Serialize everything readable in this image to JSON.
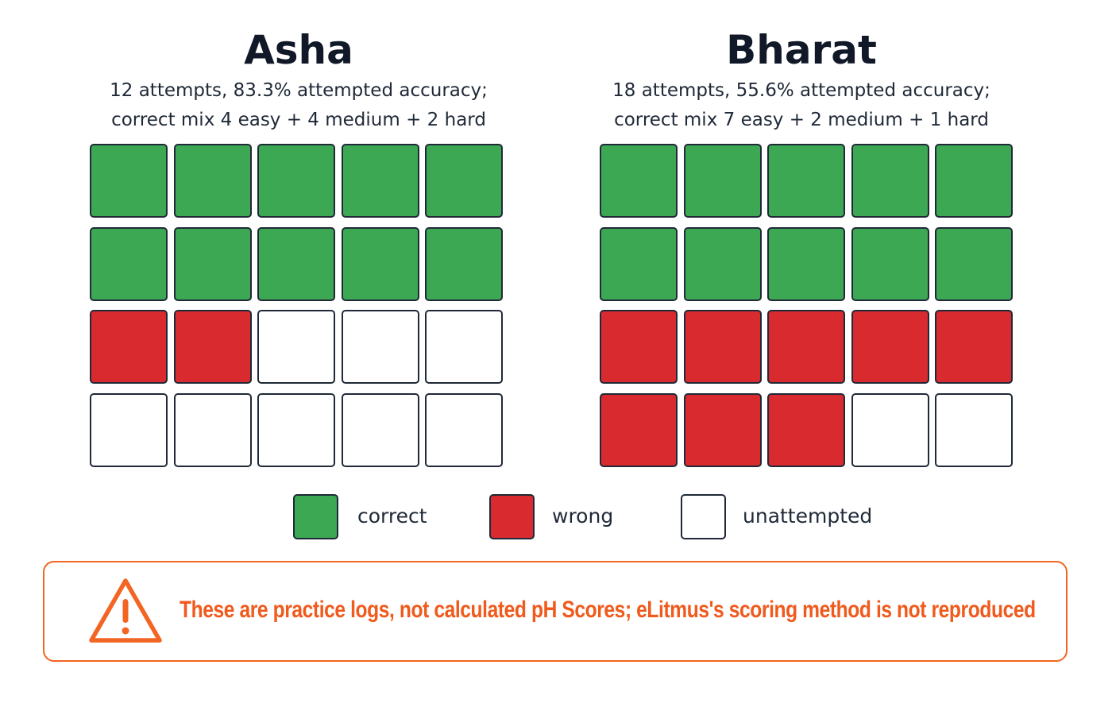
{
  "chart_data": [
    {
      "type": "waffle",
      "title": "Asha",
      "subtitle_line1": "12 attempts, 83.3% attempted accuracy;",
      "subtitle_line2": "correct mix 4 easy + 4 medium + 2 hard",
      "rows": 4,
      "cols": 5,
      "counts": {
        "correct": 10,
        "wrong": 2,
        "unattempted": 8
      }
    },
    {
      "type": "waffle",
      "title": "Bharat",
      "subtitle_line1": "18 attempts, 55.6% attempted accuracy;",
      "subtitle_line2": "correct mix 7 easy + 2 medium + 1 hard",
      "rows": 4,
      "cols": 5,
      "counts": {
        "correct": 10,
        "wrong": 8,
        "unattempted": 2
      }
    }
  ],
  "legend": [
    {
      "key": "correct",
      "label": "correct",
      "color": "#3da853"
    },
    {
      "key": "wrong",
      "label": "wrong",
      "color": "#d92b2f"
    },
    {
      "key": "unattempted",
      "label": "unattempted",
      "color": "#ffffff"
    }
  ],
  "warning": {
    "icon": "warning-triangle-icon",
    "text": "These are practice logs, not calculated pH Scores; eLitmus's scoring method is not reproduced",
    "color": "#f05a1c"
  }
}
